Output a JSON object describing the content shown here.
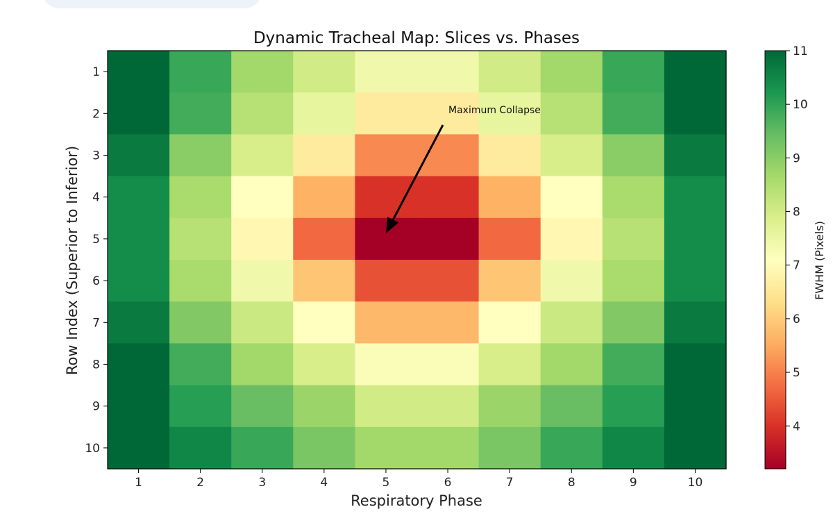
{
  "chart_data": {
    "type": "heatmap",
    "title": "Dynamic Tracheal Map: Slices vs. Phases",
    "xlabel": "Respiratory Phase",
    "ylabel": "Row Index (Superior to Inferior)",
    "x_categories": [
      "1",
      "2",
      "3",
      "4",
      "5",
      "6",
      "7",
      "8",
      "9",
      "10"
    ],
    "y_categories": [
      "1",
      "2",
      "3",
      "4",
      "5",
      "6",
      "7",
      "8",
      "9",
      "10"
    ],
    "values": [
      [
        11.0,
        9.9,
        8.7,
        8.0,
        7.4,
        7.4,
        8.0,
        8.7,
        9.9,
        11.0
      ],
      [
        11.0,
        9.8,
        8.4,
        7.6,
        6.6,
        6.6,
        7.6,
        8.4,
        9.8,
        11.0
      ],
      [
        10.7,
        9.0,
        7.9,
        6.6,
        5.1,
        5.1,
        6.6,
        7.9,
        9.0,
        10.7
      ],
      [
        10.4,
        8.6,
        7.1,
        5.6,
        4.0,
        4.0,
        5.6,
        7.1,
        8.6,
        10.4
      ],
      [
        10.4,
        8.4,
        6.9,
        4.7,
        3.2,
        3.2,
        4.7,
        6.9,
        8.4,
        10.4
      ],
      [
        10.4,
        8.6,
        7.4,
        5.9,
        4.4,
        4.4,
        5.9,
        7.4,
        8.6,
        10.4
      ],
      [
        10.7,
        9.1,
        8.1,
        7.1,
        5.7,
        5.7,
        7.1,
        8.1,
        9.1,
        10.7
      ],
      [
        11.0,
        9.8,
        8.7,
        7.9,
        7.2,
        7.2,
        7.9,
        8.7,
        9.8,
        11.0
      ],
      [
        11.0,
        10.1,
        9.4,
        8.8,
        8.0,
        8.0,
        8.8,
        9.4,
        10.1,
        11.0
      ],
      [
        11.0,
        10.5,
        9.9,
        9.2,
        8.7,
        8.7,
        9.2,
        9.9,
        10.5,
        11.0
      ]
    ],
    "colorbar": {
      "label": "FWHM (Pixels)",
      "colormap": "RdYlGn",
      "range": [
        3.2,
        11.0
      ],
      "ticks": [
        "4",
        "5",
        "6",
        "7",
        "8",
        "9",
        "10",
        "11"
      ]
    },
    "annotation": {
      "text": "Maximum Collapse",
      "target_phase": 5,
      "target_row": 5,
      "arrow_color": "#000000"
    },
    "grid": false
  }
}
